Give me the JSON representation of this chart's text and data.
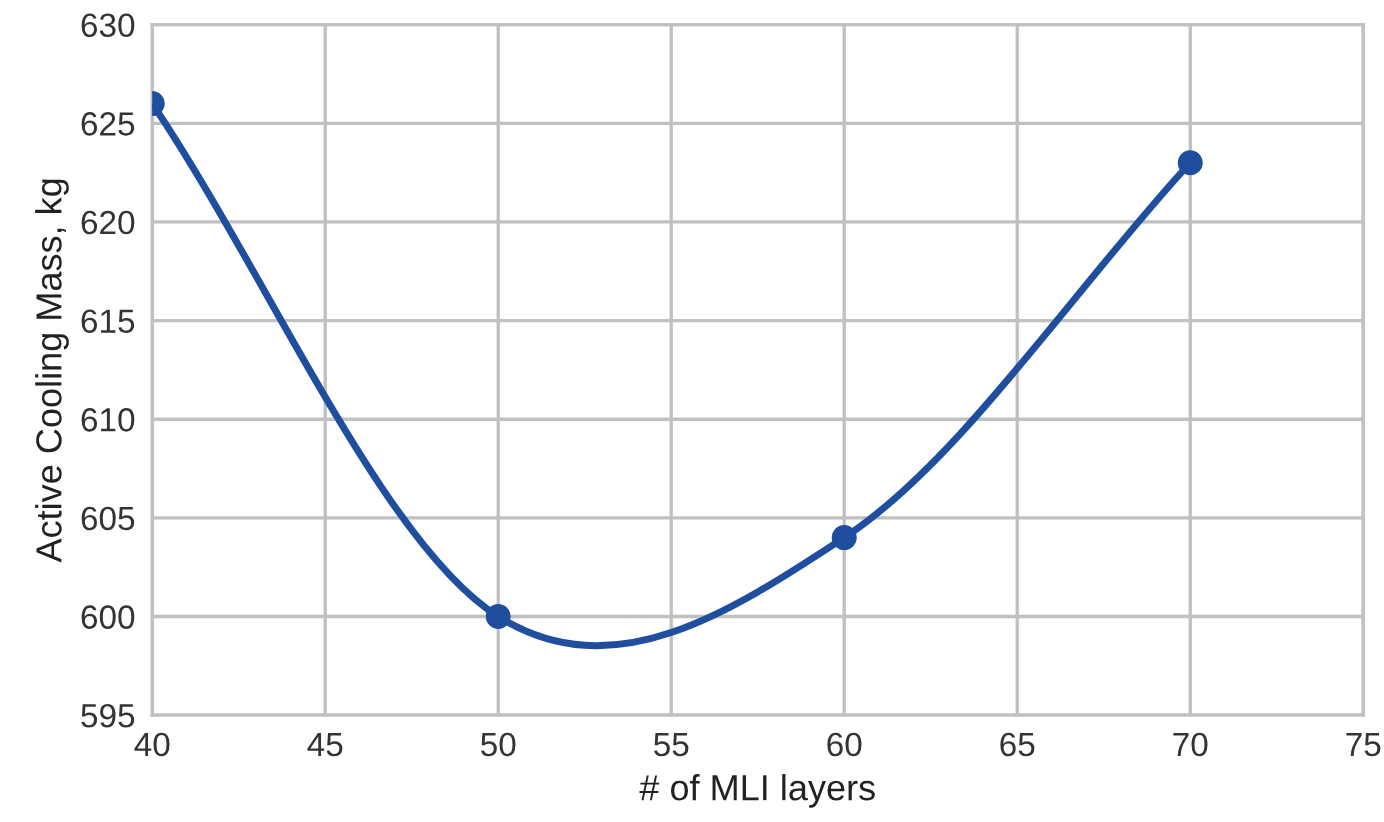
{
  "chart_data": {
    "type": "line",
    "xlabel": "# of MLI layers",
    "ylabel": "Active Cooling Mass, kg",
    "x": [
      40,
      50,
      60,
      70
    ],
    "series": [
      {
        "color": "#1f4e9f",
        "values": [
          626,
          600,
          604,
          623
        ]
      }
    ],
    "xlim": [
      40,
      75
    ],
    "xticks": [
      40,
      45,
      50,
      55,
      60,
      65,
      70,
      75
    ],
    "ylim": [
      595,
      630
    ],
    "yticks": [
      595,
      600,
      605,
      610,
      615,
      620,
      625,
      630
    ],
    "grid": true,
    "marker": "circle",
    "line_style": "solid"
  }
}
